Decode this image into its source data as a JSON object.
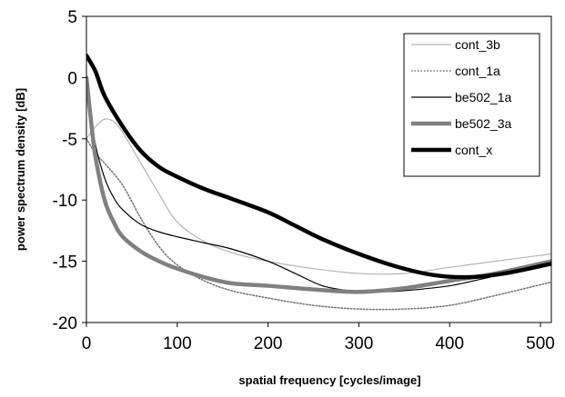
{
  "chart_data": {
    "type": "line",
    "xlabel": "spatial frequency [cycles/image]",
    "ylabel": "power spectrum density [dB]",
    "xlim": [
      0,
      512
    ],
    "ylim": [
      -20,
      5
    ],
    "xticks": [
      0,
      100,
      200,
      300,
      400,
      500
    ],
    "xtick_labels": [
      "0",
      "100",
      "200",
      "300",
      "400",
      "500"
    ],
    "yticks": [
      5,
      0,
      -5,
      -10,
      -15,
      -20
    ],
    "ytick_labels": [
      "5",
      "0",
      "-5",
      "-10",
      "-15",
      "-20"
    ],
    "grid": false,
    "legend_position": "top-right",
    "series": [
      {
        "name": "cont_3b",
        "color": "#b4b4b4",
        "style": "thin-solid",
        "x": [
          0,
          10,
          20,
          30,
          40,
          60,
          80,
          100,
          130,
          160,
          200,
          250,
          300,
          350,
          400,
          450,
          512
        ],
        "y": [
          -5,
          -4,
          -3.4,
          -3.6,
          -4.5,
          -7,
          -9.5,
          -11.8,
          -13.4,
          -14.3,
          -15,
          -15.6,
          -16,
          -16,
          -15.5,
          -15,
          -14.4
        ]
      },
      {
        "name": "cont_1a",
        "color": "#707070",
        "style": "dotted",
        "x": [
          0,
          10,
          20,
          40,
          60,
          80,
          100,
          130,
          160,
          200,
          250,
          300,
          350,
          400,
          450,
          512
        ],
        "y": [
          -5,
          -6.2,
          -7,
          -8.8,
          -11.5,
          -13.8,
          -15.3,
          -16.6,
          -17.4,
          -18,
          -18.6,
          -18.9,
          -18.9,
          -18.6,
          -17.8,
          -16.7
        ]
      },
      {
        "name": "be502_1a",
        "color": "#000000",
        "style": "thin-solid",
        "x": [
          0,
          5,
          10,
          20,
          30,
          40,
          60,
          80,
          100,
          130,
          160,
          200,
          230,
          260,
          290,
          320,
          350,
          400,
          450,
          512
        ],
        "y": [
          -0.4,
          -3,
          -5.5,
          -8.2,
          -9.8,
          -10.8,
          -12,
          -12.6,
          -13,
          -13.5,
          -14,
          -15,
          -16,
          -17,
          -17.4,
          -17.5,
          -17.4,
          -17,
          -16.2,
          -15.2
        ]
      },
      {
        "name": "be502_3a",
        "color": "#808080",
        "style": "thick-solid",
        "x": [
          0,
          5,
          10,
          20,
          30,
          40,
          60,
          80,
          100,
          130,
          160,
          200,
          250,
          300,
          350,
          400,
          450,
          512
        ],
        "y": [
          0,
          -3.5,
          -6.5,
          -10,
          -11.8,
          -13,
          -14.2,
          -15,
          -15.6,
          -16.3,
          -16.8,
          -17,
          -17.3,
          -17.5,
          -17.2,
          -16.6,
          -16,
          -15
        ]
      },
      {
        "name": "cont_x",
        "color": "#000000",
        "style": "extra-thick-solid",
        "x": [
          0,
          10,
          20,
          40,
          60,
          80,
          100,
          130,
          160,
          200,
          230,
          260,
          300,
          340,
          380,
          420,
          460,
          512
        ],
        "y": [
          1.8,
          0.5,
          -1.5,
          -4,
          -6,
          -7.3,
          -8.1,
          -9.1,
          -9.9,
          -11,
          -12.1,
          -13.2,
          -14.4,
          -15.4,
          -16.1,
          -16.3,
          -16,
          -15.2
        ]
      }
    ]
  }
}
